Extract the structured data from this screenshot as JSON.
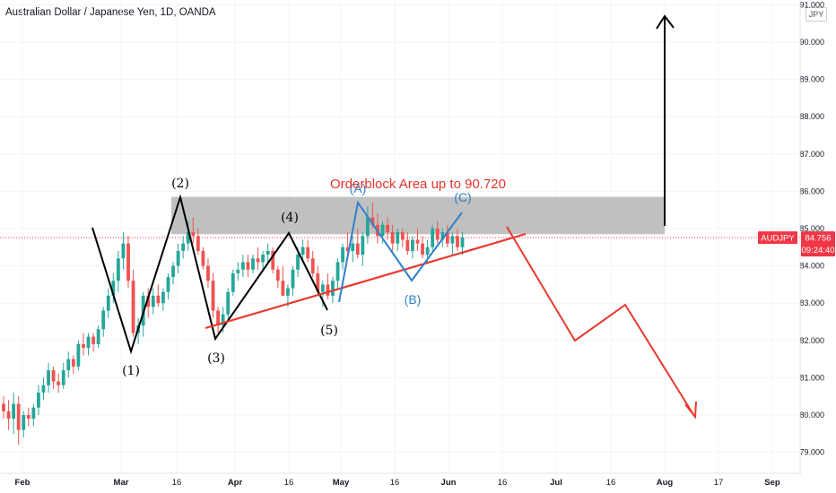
{
  "header": {
    "title": "Australian Dollar / Japanese Yen, 1D, OANDA",
    "currency": "JPY"
  },
  "price_badge": {
    "symbol": "AUDJPY",
    "price": "84.756",
    "countdown": "09:24:40",
    "color": "#f23645"
  },
  "colors": {
    "up": "#26a69a",
    "down": "#ef5350",
    "trendline": "#e8392f",
    "zone": "#b5b5b5",
    "abc": "#2f80c8"
  },
  "chart_data": {
    "type": "candlestick",
    "title": "Australian Dollar / Japanese Yen, 1D, OANDA",
    "y_axis": {
      "min": 78.7,
      "max": 91.0,
      "ticks": [
        "79.000",
        "80.000",
        "81.000",
        "82.000",
        "83.000",
        "84.000",
        "85.000",
        "86.000",
        "87.000",
        "88.000",
        "89.000",
        "90.000",
        "91.000"
      ],
      "position": "right"
    },
    "x_axis": {
      "ticks": [
        {
          "label": "Feb",
          "bold": true
        },
        {
          "label": "Mar",
          "bold": true
        },
        {
          "label": "16",
          "bold": false
        },
        {
          "label": "Apr",
          "bold": true
        },
        {
          "label": "16",
          "bold": false
        },
        {
          "label": "May",
          "bold": true
        },
        {
          "label": "16",
          "bold": false
        },
        {
          "label": "Jun",
          "bold": true
        },
        {
          "label": "16",
          "bold": false
        },
        {
          "label": "Jul",
          "bold": true
        },
        {
          "label": "16",
          "bold": false
        },
        {
          "label": "Aug",
          "bold": true
        },
        {
          "label": "17",
          "bold": false
        },
        {
          "label": "Sep",
          "bold": true
        }
      ]
    },
    "candles": [
      [
        80.3,
        80.5,
        79.9,
        80.1
      ],
      [
        80.1,
        80.4,
        79.6,
        79.9
      ],
      [
        79.9,
        80.6,
        79.5,
        80.3
      ],
      [
        80.3,
        80.5,
        79.2,
        79.6
      ],
      [
        79.6,
        80.1,
        79.4,
        80.0
      ],
      [
        80.0,
        80.2,
        79.7,
        79.9
      ],
      [
        79.9,
        80.3,
        79.7,
        80.2
      ],
      [
        80.2,
        80.8,
        80.0,
        80.6
      ],
      [
        80.6,
        81.0,
        80.4,
        80.8
      ],
      [
        80.8,
        81.4,
        80.6,
        81.2
      ],
      [
        81.2,
        81.3,
        80.7,
        80.9
      ],
      [
        80.9,
        81.1,
        80.6,
        80.8
      ],
      [
        80.8,
        81.4,
        80.7,
        81.2
      ],
      [
        81.2,
        81.7,
        81.0,
        81.5
      ],
      [
        81.5,
        81.6,
        81.1,
        81.3
      ],
      [
        81.3,
        82.0,
        81.2,
        81.9
      ],
      [
        81.9,
        82.2,
        81.6,
        81.8
      ],
      [
        81.8,
        82.2,
        81.6,
        82.1
      ],
      [
        82.1,
        82.2,
        81.7,
        81.9
      ],
      [
        81.9,
        82.4,
        81.8,
        82.3
      ],
      [
        82.3,
        82.9,
        82.1,
        82.8
      ],
      [
        82.8,
        83.4,
        82.6,
        83.2
      ],
      [
        83.2,
        83.8,
        83.0,
        83.6
      ],
      [
        83.6,
        84.4,
        83.3,
        84.2
      ],
      [
        84.2,
        84.9,
        83.9,
        84.6
      ],
      [
        84.6,
        84.8,
        83.4,
        83.6
      ],
      [
        83.6,
        83.9,
        82.1,
        82.2
      ],
      [
        82.2,
        82.6,
        81.9,
        82.4
      ],
      [
        82.4,
        83.3,
        82.1,
        83.2
      ],
      [
        83.2,
        83.4,
        82.6,
        82.9
      ],
      [
        82.9,
        83.4,
        82.7,
        83.2
      ],
      [
        83.2,
        83.5,
        82.9,
        83.0
      ],
      [
        83.0,
        83.4,
        82.8,
        83.3
      ],
      [
        83.3,
        83.8,
        83.1,
        83.7
      ],
      [
        83.7,
        84.1,
        83.5,
        84.0
      ],
      [
        84.0,
        84.6,
        83.8,
        84.4
      ],
      [
        84.4,
        84.8,
        84.2,
        84.6
      ],
      [
        84.6,
        85.2,
        84.4,
        84.9
      ],
      [
        84.9,
        85.3,
        84.6,
        84.8
      ],
      [
        84.8,
        85.0,
        84.3,
        84.4
      ],
      [
        84.4,
        84.5,
        83.9,
        84.0
      ],
      [
        84.0,
        84.2,
        83.4,
        83.6
      ],
      [
        83.6,
        83.8,
        82.6,
        82.8
      ],
      [
        82.8,
        82.9,
        82.2,
        82.4
      ],
      [
        82.4,
        82.9,
        82.2,
        82.7
      ],
      [
        82.7,
        83.4,
        82.5,
        83.3
      ],
      [
        83.3,
        83.9,
        83.2,
        83.8
      ],
      [
        83.8,
        84.1,
        83.6,
        83.9
      ],
      [
        83.9,
        84.3,
        83.7,
        84.1
      ],
      [
        84.1,
        84.3,
        83.7,
        83.9
      ],
      [
        83.9,
        84.3,
        83.8,
        84.2
      ],
      [
        84.2,
        84.5,
        83.9,
        84.1
      ],
      [
        84.1,
        84.4,
        83.9,
        84.3
      ],
      [
        84.3,
        84.6,
        84.1,
        84.4
      ],
      [
        84.4,
        84.5,
        83.8,
        83.9
      ],
      [
        83.9,
        84.0,
        83.4,
        83.6
      ],
      [
        83.6,
        84.0,
        83.3,
        83.2
      ],
      [
        83.2,
        83.5,
        82.9,
        83.4
      ],
      [
        83.4,
        84.0,
        83.2,
        83.9
      ],
      [
        83.9,
        84.5,
        83.7,
        84.3
      ],
      [
        84.3,
        84.7,
        84.1,
        84.5
      ],
      [
        84.5,
        84.7,
        84.1,
        84.2
      ],
      [
        84.2,
        84.4,
        83.7,
        83.8
      ],
      [
        83.8,
        84.0,
        83.2,
        83.3
      ],
      [
        83.3,
        83.6,
        82.9,
        83.5
      ],
      [
        83.5,
        83.8,
        83.1,
        83.2
      ],
      [
        83.2,
        83.7,
        83.0,
        83.6
      ],
      [
        83.6,
        84.2,
        83.4,
        84.1
      ],
      [
        84.1,
        84.6,
        83.9,
        84.5
      ],
      [
        84.5,
        84.9,
        84.2,
        84.4
      ],
      [
        84.4,
        84.8,
        84.1,
        84.6
      ],
      [
        84.6,
        85.0,
        84.2,
        84.3
      ],
      [
        84.3,
        84.9,
        84.0,
        84.8
      ],
      [
        84.8,
        85.6,
        84.6,
        85.3
      ],
      [
        85.3,
        85.7,
        85.0,
        85.1
      ],
      [
        85.1,
        85.4,
        84.6,
        84.8
      ],
      [
        84.8,
        85.2,
        84.6,
        85.1
      ],
      [
        85.1,
        85.3,
        84.7,
        84.9
      ],
      [
        84.9,
        85.1,
        84.4,
        84.6
      ],
      [
        84.6,
        85.0,
        84.4,
        84.9
      ],
      [
        84.9,
        85.0,
        84.5,
        84.7
      ],
      [
        84.7,
        84.9,
        84.3,
        84.4
      ],
      [
        84.4,
        84.8,
        84.2,
        84.7
      ],
      [
        84.7,
        85.0,
        84.4,
        84.6
      ],
      [
        84.6,
        84.8,
        84.2,
        84.3
      ],
      [
        84.3,
        84.7,
        84.1,
        84.5
      ],
      [
        84.5,
        85.1,
        84.4,
        85.0
      ],
      [
        85.0,
        85.2,
        84.6,
        84.7
      ],
      [
        84.7,
        85.0,
        84.5,
        84.9
      ],
      [
        84.9,
        85.1,
        84.5,
        84.6
      ],
      [
        84.6,
        84.9,
        84.3,
        84.8
      ],
      [
        84.8,
        85.0,
        84.4,
        84.5
      ],
      [
        84.5,
        84.9,
        84.3,
        84.76
      ]
    ],
    "annotations": [
      {
        "text": "(1)",
        "color": "#000000"
      },
      {
        "text": "(2)",
        "color": "#000000"
      },
      {
        "text": "(3)",
        "color": "#000000"
      },
      {
        "text": "(4)",
        "color": "#000000"
      },
      {
        "text": "(5)",
        "color": "#000000"
      },
      {
        "text": "(A)",
        "color": "#2f80c8"
      },
      {
        "text": "(B)",
        "color": "#2f80c8"
      },
      {
        "text": "(C)",
        "color": "#2f80c8"
      },
      {
        "text": "Orderblock Area up to 90.720",
        "color": "#e5352c"
      }
    ],
    "orderblock_zone": {
      "low": 84.85,
      "high": 85.85
    },
    "current_price": 84.756
  }
}
